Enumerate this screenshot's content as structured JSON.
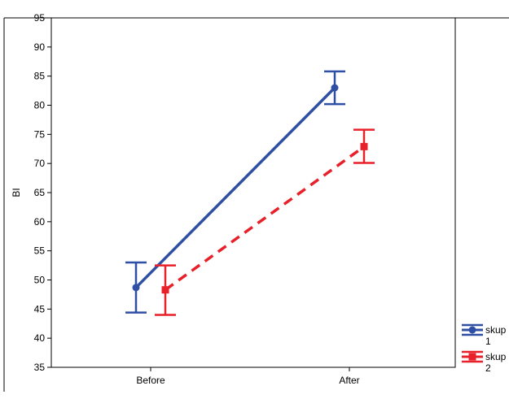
{
  "chart_data": {
    "type": "line",
    "title": "",
    "xlabel": "",
    "ylabel": "BI",
    "categories": [
      "Before",
      "After"
    ],
    "ylim": [
      35,
      95
    ],
    "yticks": [
      35,
      40,
      45,
      50,
      55,
      60,
      65,
      70,
      75,
      80,
      85,
      90,
      95
    ],
    "grid": false,
    "legend": "right-bottom",
    "series": [
      {
        "name": "skup 1",
        "color": "#2e4fa3",
        "marker": "circle",
        "line_style": "solid",
        "values": [
          48.7,
          83.0
        ],
        "error_low": [
          44.4,
          80.2
        ],
        "error_high": [
          53.0,
          85.8
        ]
      },
      {
        "name": "skup 2",
        "color": "#e8202a",
        "marker": "square",
        "line_style": "dashed",
        "values": [
          48.3,
          72.9
        ],
        "error_low": [
          44.0,
          70.1
        ],
        "error_high": [
          52.5,
          75.8
        ]
      }
    ]
  }
}
